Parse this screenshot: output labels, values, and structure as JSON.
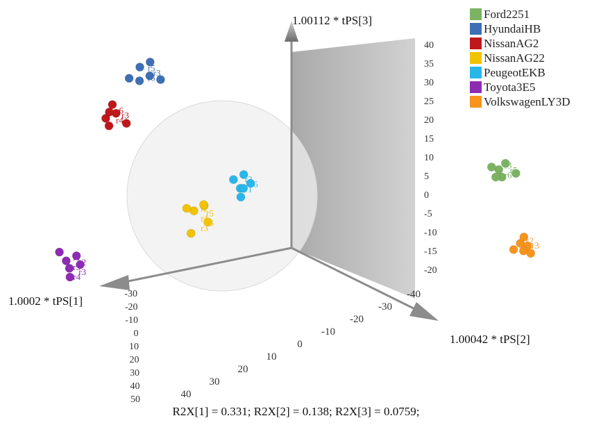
{
  "chart_data": {
    "type": "scatter",
    "title": "",
    "axes": {
      "x": {
        "label": "1.0002 * tPS[1]",
        "ticks": [
          "-30",
          "-20",
          "-10",
          "0",
          "10",
          "20",
          "30",
          "40",
          "50"
        ]
      },
      "y": {
        "label": "1.00042 * tPS[2]",
        "ticks": [
          "-40",
          "-30",
          "-20",
          "-10",
          "0",
          "10",
          "20",
          "30",
          "40"
        ]
      },
      "z": {
        "label": "1.00112 * tPS[3]",
        "ticks": [
          "40",
          "35",
          "30",
          "25",
          "20",
          "15",
          "10",
          "5",
          "0",
          "-5",
          "-10",
          "-15",
          "-20"
        ]
      }
    },
    "grid": false,
    "legend_position": "top-right",
    "series": [
      {
        "name": "Ford2251",
        "color": "#7cb362",
        "point_labels": [
          "r3",
          "r5",
          "r6"
        ]
      },
      {
        "name": "HyundaiHB",
        "color": "#3d6fb4",
        "point_labels": [
          "r5",
          "r3",
          "r6"
        ]
      },
      {
        "name": "NissanAG2",
        "color": "#c0171b",
        "point_labels": [
          "r6",
          "r3",
          "r4"
        ]
      },
      {
        "name": "NissanAG22",
        "color": "#f2c300",
        "point_labels": [
          "r2",
          "r5",
          "r4",
          "r6",
          "r3"
        ]
      },
      {
        "name": "PeugeotEKB",
        "color": "#29b7ea",
        "point_labels": [
          "r2",
          "r6",
          "r1"
        ]
      },
      {
        "name": "Toyota3E5",
        "color": "#8e2bb3",
        "point_labels": [
          "r1",
          "r2",
          "r5",
          "r3",
          "r4"
        ]
      },
      {
        "name": "VolkswagenLY3D",
        "color": "#f7941d",
        "point_labels": [
          "r2",
          "r3",
          "r5"
        ]
      }
    ],
    "points": [
      {
        "series": 0,
        "x": -28,
        "y": 5,
        "z": 9
      },
      {
        "series": 0,
        "x": -29,
        "y": 4,
        "z": 8
      },
      {
        "series": 0,
        "x": -27,
        "y": 6,
        "z": 8
      },
      {
        "series": 0,
        "x": -30,
        "y": 6,
        "z": 9
      },
      {
        "series": 0,
        "x": -28,
        "y": 3,
        "z": 9
      },
      {
        "series": 0,
        "x": -29,
        "y": 5,
        "z": 10
      },
      {
        "series": 1,
        "x": 5,
        "y": -30,
        "z": 12
      },
      {
        "series": 1,
        "x": 6,
        "y": -31,
        "z": 11
      },
      {
        "series": 1,
        "x": 4,
        "y": -32,
        "z": 10
      },
      {
        "series": 1,
        "x": 5,
        "y": -33,
        "z": 9
      },
      {
        "series": 1,
        "x": 6,
        "y": -34,
        "z": 9
      },
      {
        "series": 1,
        "x": 4,
        "y": -29,
        "z": 10
      },
      {
        "series": 2,
        "x": 8,
        "y": -34,
        "z": 4
      },
      {
        "series": 2,
        "x": 9,
        "y": -35,
        "z": 3
      },
      {
        "series": 2,
        "x": 8,
        "y": -35,
        "z": 5
      },
      {
        "series": 2,
        "x": 7,
        "y": -33,
        "z": 3
      },
      {
        "series": 2,
        "x": 9,
        "y": -34,
        "z": 4
      },
      {
        "series": 2,
        "x": 8,
        "y": -36,
        "z": 2
      },
      {
        "series": 3,
        "x": 10,
        "y": -6,
        "z": -4
      },
      {
        "series": 3,
        "x": 11,
        "y": -7,
        "z": -5
      },
      {
        "series": 3,
        "x": 9,
        "y": -8,
        "z": -4
      },
      {
        "series": 3,
        "x": 10,
        "y": -5,
        "z": -6
      },
      {
        "series": 3,
        "x": 11,
        "y": -9,
        "z": -5
      },
      {
        "series": 3,
        "x": 12,
        "y": -6,
        "z": -8
      },
      {
        "series": 4,
        "x": 2,
        "y": -8,
        "z": 0
      },
      {
        "series": 4,
        "x": 3,
        "y": -9,
        "z": -1
      },
      {
        "series": 4,
        "x": 4,
        "y": -7,
        "z": -2
      },
      {
        "series": 4,
        "x": 3,
        "y": -8,
        "z": 1
      },
      {
        "series": 4,
        "x": 2,
        "y": -10,
        "z": -1
      },
      {
        "series": 4,
        "x": 4,
        "y": -9,
        "z": 0
      },
      {
        "series": 5,
        "x": 28,
        "y": -8,
        "z": -14
      },
      {
        "series": 5,
        "x": 29,
        "y": -9,
        "z": -15
      },
      {
        "series": 5,
        "x": 28,
        "y": -10,
        "z": -16
      },
      {
        "series": 5,
        "x": 30,
        "y": -9,
        "z": -14
      },
      {
        "series": 5,
        "x": 29,
        "y": -8,
        "z": -17
      },
      {
        "series": 5,
        "x": 28,
        "y": -7,
        "z": -15
      },
      {
        "series": 6,
        "x": -22,
        "y": 22,
        "z": 1
      },
      {
        "series": 6,
        "x": -23,
        "y": 23,
        "z": 0
      },
      {
        "series": 6,
        "x": -21,
        "y": 22,
        "z": 0
      },
      {
        "series": 6,
        "x": -22,
        "y": 24,
        "z": 1
      },
      {
        "series": 6,
        "x": -23,
        "y": 21,
        "z": 0
      },
      {
        "series": 6,
        "x": -22,
        "y": 23,
        "z": 2
      }
    ]
  },
  "footer": "R2X[1] = 0.331; R2X[2] = 0.138; R2X[3] = 0.0759;"
}
